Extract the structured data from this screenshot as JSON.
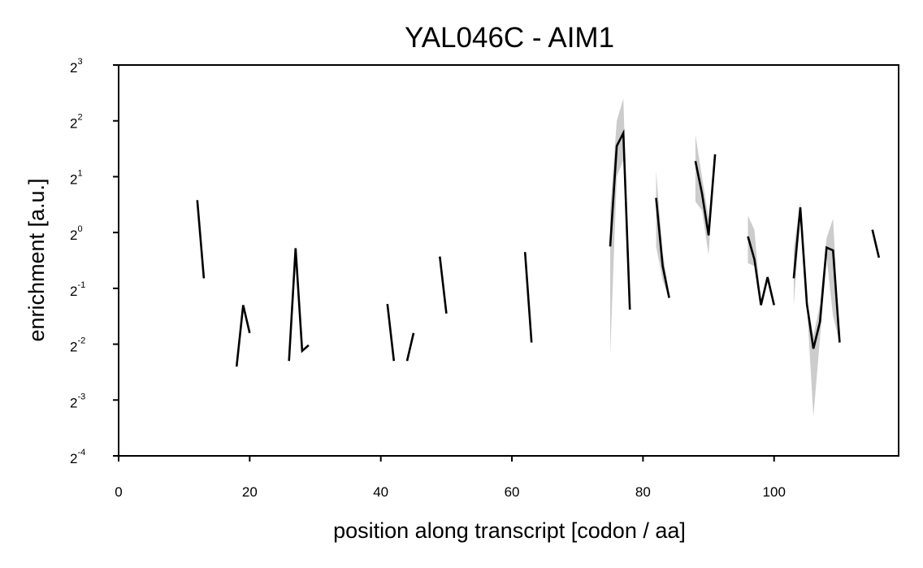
{
  "chart_data": {
    "type": "line",
    "title": "YAL046C - AIM1",
    "xlabel": "position along transcript [codon / aa]",
    "ylabel": "enrichment [a.u.]",
    "xlim": [
      0,
      119
    ],
    "ylim_log2": [
      -4,
      3
    ],
    "y_scale": "log2",
    "x_ticks": [
      0,
      20,
      40,
      60,
      80,
      100
    ],
    "y_ticks": [
      {
        "base": "2",
        "exp": "3",
        "log2": 3
      },
      {
        "base": "2",
        "exp": "2",
        "log2": 2
      },
      {
        "base": "2",
        "exp": "1",
        "log2": 1
      },
      {
        "base": "2",
        "exp": "0",
        "log2": 0
      },
      {
        "base": "2",
        "exp": "-1",
        "log2": -1
      },
      {
        "base": "2",
        "exp": "-2",
        "log2": -2
      },
      {
        "base": "2",
        "exp": "-3",
        "log2": -3
      },
      {
        "base": "2",
        "exp": "-4",
        "log2": -4
      }
    ],
    "grid": false,
    "line_color": "#000000",
    "band_color": "#cccccc",
    "segments": [
      {
        "points": [
          [
            12,
            0.58
          ],
          [
            13,
            -0.82
          ]
        ]
      },
      {
        "points": [
          [
            18,
            -2.4
          ],
          [
            19,
            -1.3
          ],
          [
            20,
            -1.8
          ]
        ]
      },
      {
        "points": [
          [
            26,
            -2.3
          ],
          [
            27,
            -0.28
          ],
          [
            28,
            -2.12
          ],
          [
            29,
            -2.02
          ]
        ]
      },
      {
        "points": [
          [
            41,
            -1.28
          ],
          [
            42,
            -2.3
          ]
        ]
      },
      {
        "points": [
          [
            44,
            -2.3
          ],
          [
            45,
            -1.8
          ]
        ]
      },
      {
        "points": [
          [
            49,
            -0.43
          ],
          [
            50,
            -1.45
          ]
        ]
      },
      {
        "points": [
          [
            62,
            -0.35
          ],
          [
            63,
            -1.97
          ]
        ]
      },
      {
        "points": [
          [
            75,
            -0.25,
            -2.2,
            0.4
          ],
          [
            76,
            1.55,
            1.0,
            2.0
          ],
          [
            77,
            1.78,
            1.3,
            2.4
          ],
          [
            78,
            -1.38,
            -1.38,
            -1.38
          ]
        ]
      },
      {
        "points": [
          [
            82,
            0.62,
            -0.25,
            1.1
          ],
          [
            83,
            -0.6,
            -0.85,
            -0.35
          ],
          [
            84,
            -1.17,
            -1.2,
            -1.1
          ]
        ]
      },
      {
        "points": [
          [
            88,
            1.28,
            0.55,
            1.75
          ],
          [
            89,
            0.7,
            0.4,
            1.0
          ],
          [
            90,
            -0.05,
            -0.4,
            0.25
          ],
          [
            91,
            1.4,
            1.4,
            1.4
          ]
        ]
      },
      {
        "points": [
          [
            96,
            -0.07,
            -0.55,
            0.3
          ],
          [
            97,
            -0.48,
            -0.6,
            0.05
          ],
          [
            98,
            -1.3,
            -1.3,
            -1.3
          ],
          [
            99,
            -0.8,
            -0.8,
            -0.8
          ],
          [
            100,
            -1.3,
            -1.3,
            -1.3
          ]
        ]
      },
      {
        "points": [
          [
            103,
            -0.82,
            -1.3,
            -0.3
          ],
          [
            104,
            0.45,
            0.3,
            0.55
          ],
          [
            105,
            -1.28,
            -1.3,
            -1.2
          ],
          [
            106,
            -2.08,
            -3.3,
            -1.85
          ],
          [
            107,
            -1.6,
            -1.9,
            -1.3
          ],
          [
            108,
            -0.27,
            -0.45,
            -0.1
          ],
          [
            109,
            -0.32,
            -1.5,
            0.25
          ],
          [
            110,
            -1.97,
            -1.97,
            -1.97
          ]
        ]
      },
      {
        "points": [
          [
            115,
            0.05
          ],
          [
            116,
            -0.45
          ]
        ]
      }
    ]
  }
}
